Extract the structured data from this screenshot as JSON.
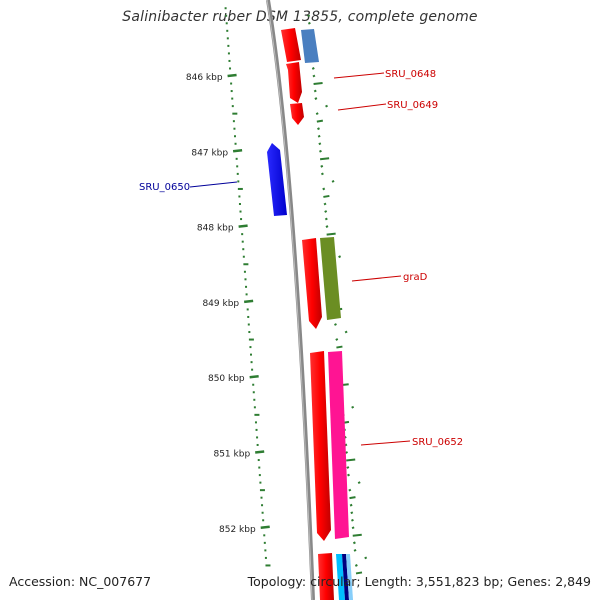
{
  "title": "Salinibacter ruber DSM 13855, complete genome",
  "footer": {
    "accession": "Accession: NC_007677",
    "summary": "Topology: circular; Length: 3,551,823 bp; Genes: 2,849"
  },
  "colors": {
    "backbone": "#888888",
    "ticks": "#2e7d32",
    "forward_label": "#cc0000",
    "reverse_label": "#000099"
  },
  "scale_labels": [
    {
      "label": "846 kbp",
      "kbp": 846
    },
    {
      "label": "847 kbp",
      "kbp": 847
    },
    {
      "label": "848 kbp",
      "kbp": 848
    },
    {
      "label": "849 kbp",
      "kbp": 849
    },
    {
      "label": "850 kbp",
      "kbp": 850
    },
    {
      "label": "851 kbp",
      "kbp": 851
    },
    {
      "label": "852 kbp",
      "kbp": 852
    }
  ],
  "gene_labels": [
    {
      "text": "SRU_0648",
      "strand": "forward"
    },
    {
      "text": "SRU_0649",
      "strand": "forward"
    },
    {
      "text": "SRU_0650",
      "strand": "reverse"
    },
    {
      "text": "graD",
      "strand": "forward"
    },
    {
      "text": "SRU_0652",
      "strand": "forward"
    }
  ]
}
